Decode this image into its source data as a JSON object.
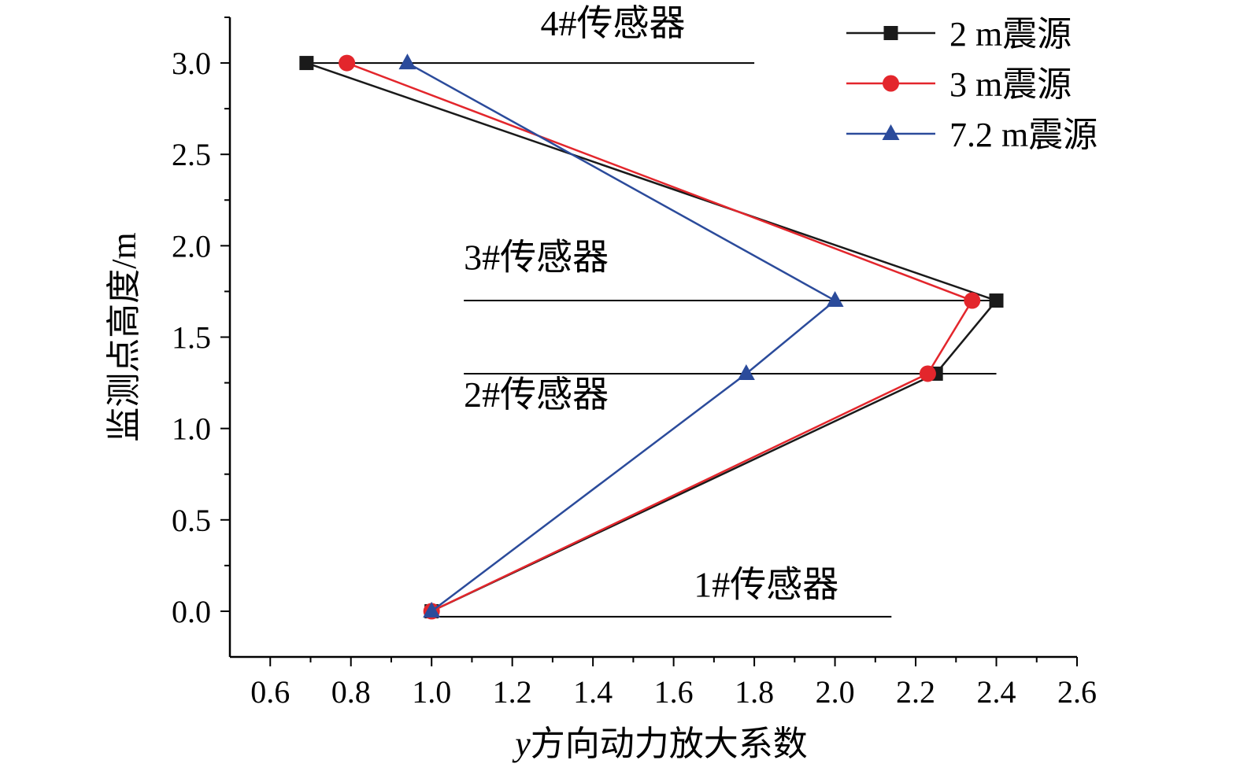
{
  "chart_data": {
    "type": "line",
    "title": "",
    "xlabel_italic": "y",
    "xlabel_rest": "方向动力放大系数",
    "ylabel": "监测点高度/m",
    "xlim": [
      0.5,
      2.6
    ],
    "ylim": [
      -0.25,
      3.25
    ],
    "xticks": [
      "0.6",
      "0.8",
      "1.0",
      "1.2",
      "1.4",
      "1.6",
      "1.8",
      "2.0",
      "2.2",
      "2.4",
      "2.6"
    ],
    "yticks": [
      "0.0",
      "0.5",
      "1.0",
      "1.5",
      "2.0",
      "2.5",
      "3.0"
    ],
    "legend_position": "top-right",
    "series": [
      {
        "name": "2 m震源",
        "color": "#1a1a1a",
        "marker": "square",
        "points": [
          {
            "x": 1.0,
            "y": 0.0
          },
          {
            "x": 2.25,
            "y": 1.3
          },
          {
            "x": 2.4,
            "y": 1.7
          },
          {
            "x": 0.69,
            "y": 3.0
          }
        ]
      },
      {
        "name": "3 m震源",
        "color": "#e3262c",
        "marker": "circle",
        "points": [
          {
            "x": 1.0,
            "y": 0.0
          },
          {
            "x": 2.23,
            "y": 1.3
          },
          {
            "x": 2.34,
            "y": 1.7
          },
          {
            "x": 0.79,
            "y": 3.0
          }
        ]
      },
      {
        "name": "7.2 m震源",
        "color": "#2b4b9b",
        "marker": "triangle",
        "points": [
          {
            "x": 1.0,
            "y": 0.0
          },
          {
            "x": 1.78,
            "y": 1.3
          },
          {
            "x": 2.0,
            "y": 1.7
          },
          {
            "x": 0.94,
            "y": 3.0
          }
        ]
      }
    ],
    "sensor_annotations": [
      {
        "label": "1#传感器",
        "y": -0.03,
        "x_start": 1.0,
        "x_end": 2.14,
        "text_x": 1.65,
        "text_y": 0.08
      },
      {
        "label": "2#传感器",
        "y": 1.3,
        "x_start": 1.08,
        "x_end": 2.4,
        "text_x": 1.08,
        "text_y": 1.12
      },
      {
        "label": "3#传感器",
        "y": 1.7,
        "x_start": 1.08,
        "x_end": 2.4,
        "text_x": 1.08,
        "text_y": 1.87
      },
      {
        "label": "4#传感器",
        "y": 3.0,
        "x_start": 0.69,
        "x_end": 1.8,
        "text_x": 1.27,
        "text_y": 3.15
      }
    ]
  }
}
